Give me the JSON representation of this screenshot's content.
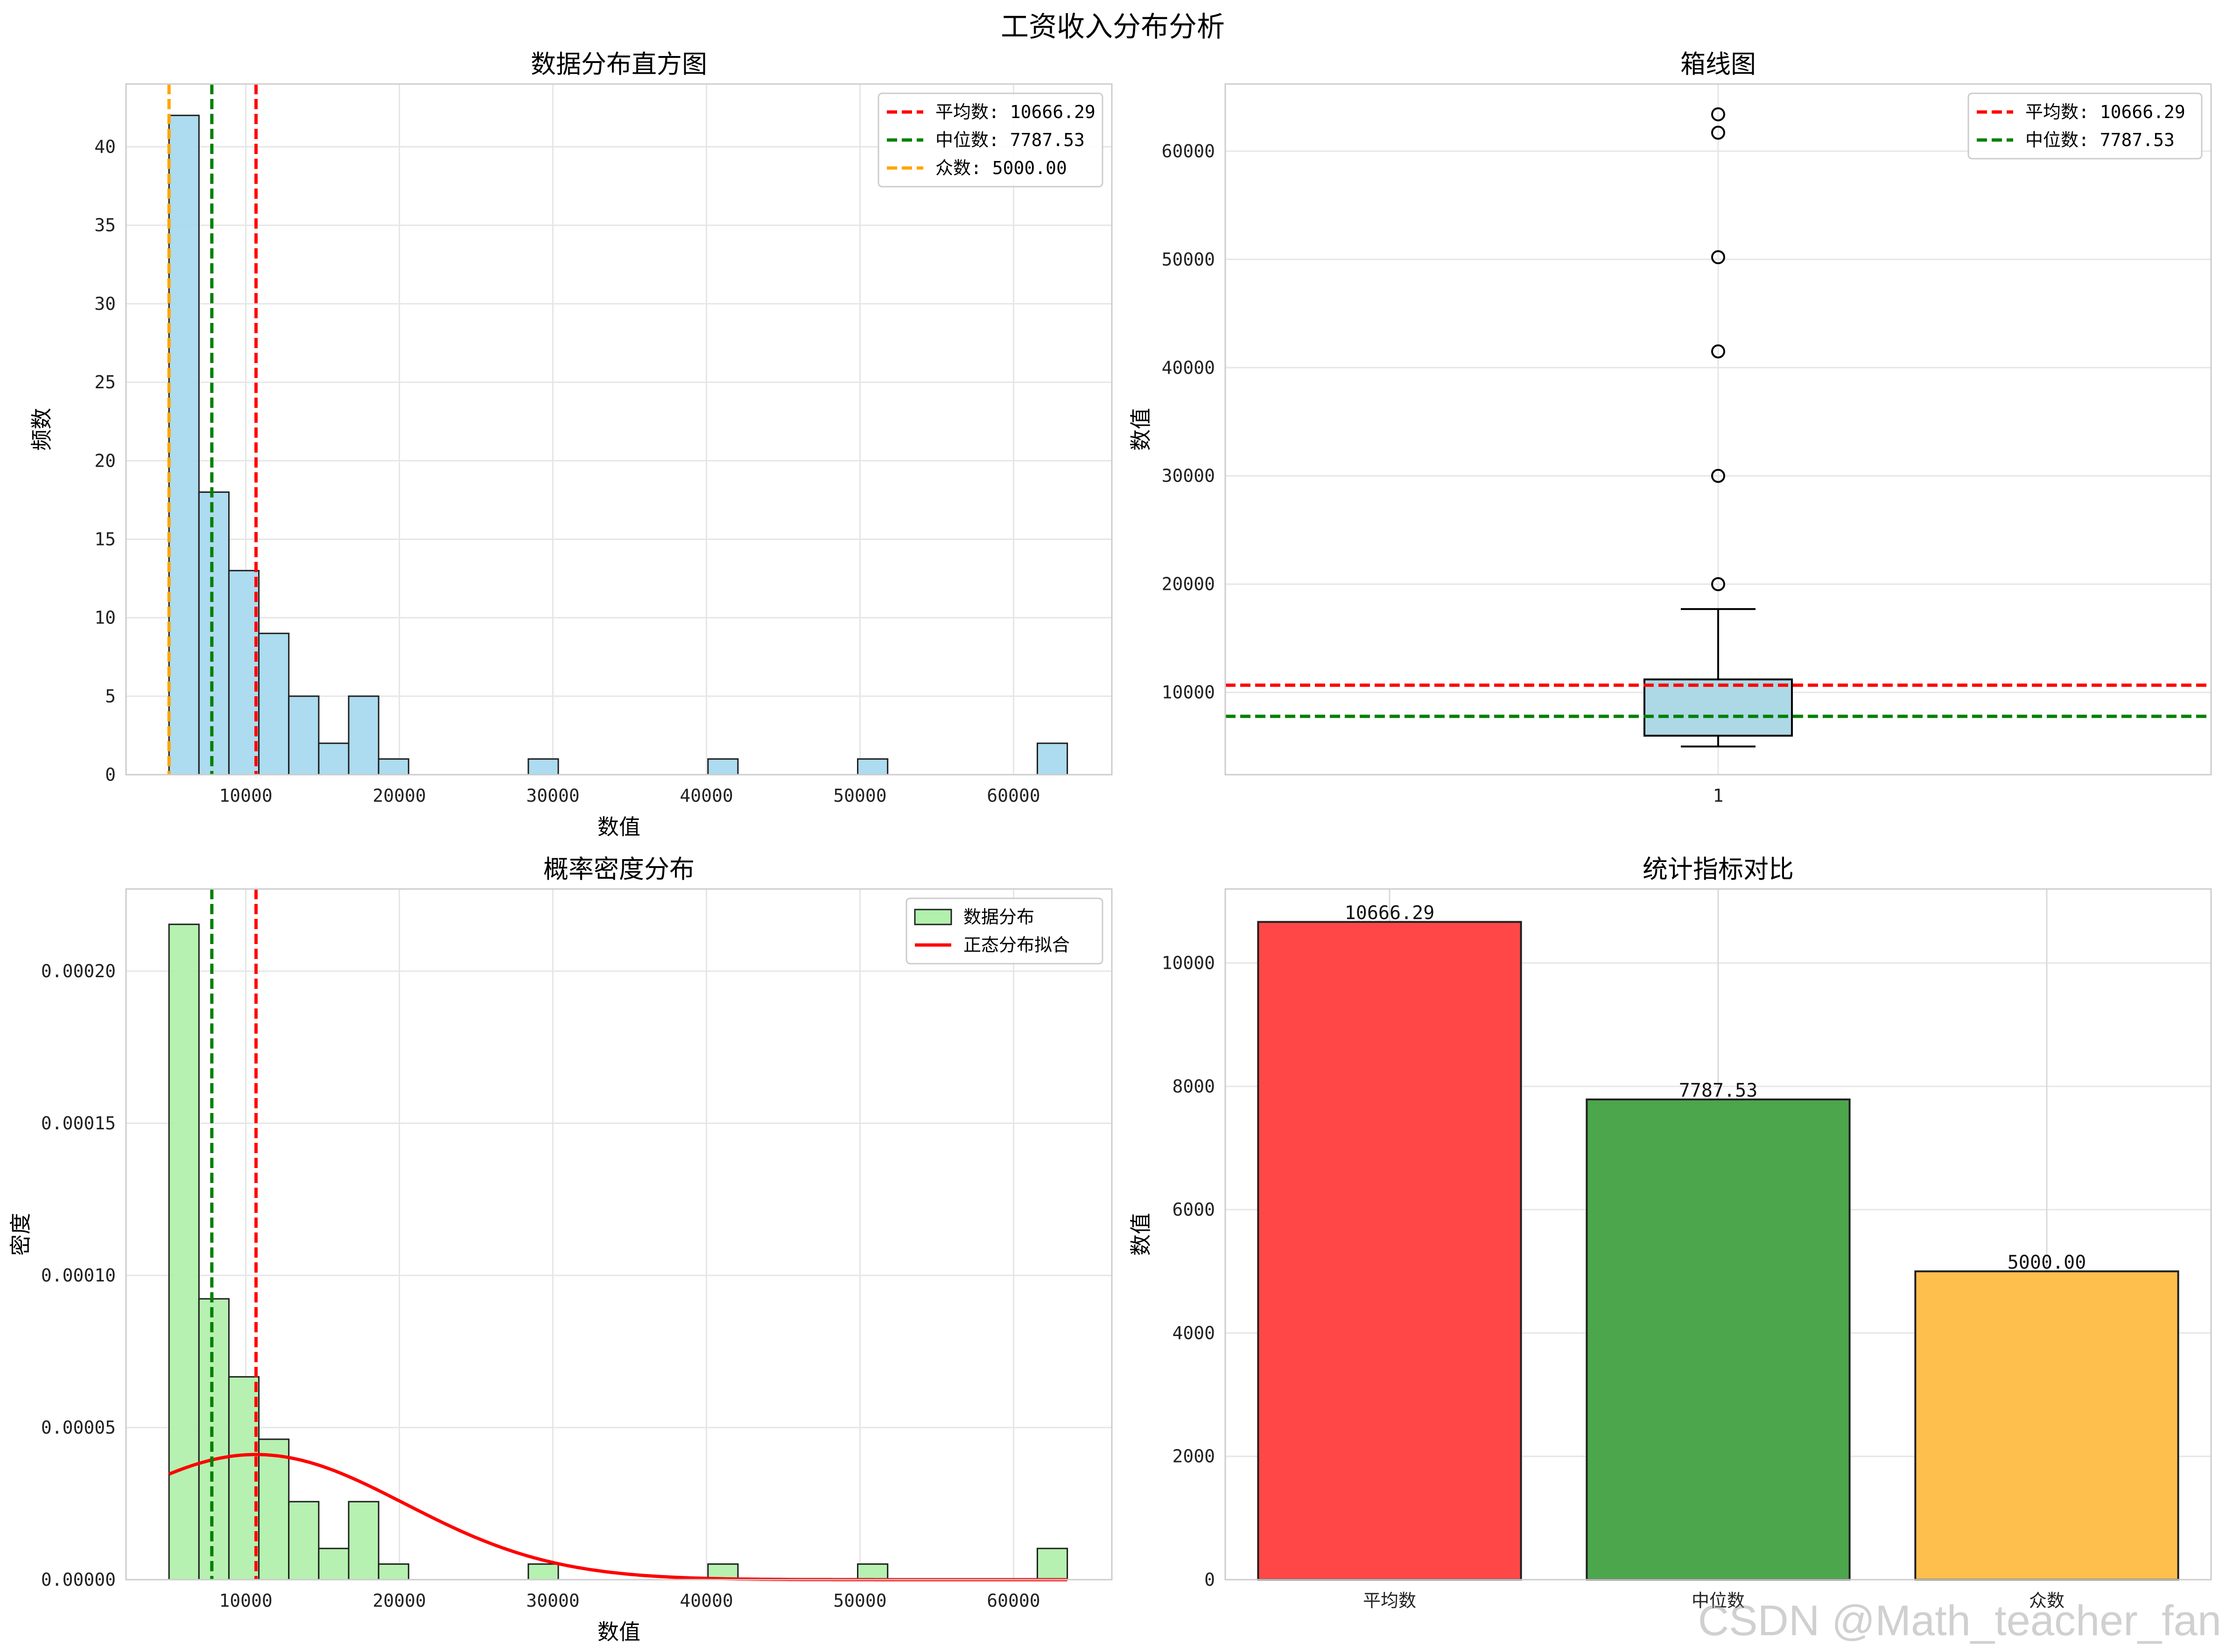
{
  "suptitle": "工资收入分布分析",
  "watermark": "CSDN @Math_teacher_fan",
  "colors": {
    "mean": "#ff0000",
    "median": "#008000",
    "mode": "#ffa500",
    "hist_fill": "#a9d9ee",
    "density_fill": "#b2f0ad",
    "box_fill": "#add8e6",
    "normal_curve": "#ff0000"
  },
  "chart_data": [
    {
      "id": "histogram",
      "type": "bar",
      "title": "数据分布直方图",
      "xlabel": "数值",
      "ylabel": "频数",
      "xlim": [
        2200,
        66400
      ],
      "ylim": [
        0,
        44
      ],
      "xticks": [
        10000,
        20000,
        30000,
        40000,
        50000,
        60000
      ],
      "yticks": [
        0,
        5,
        10,
        15,
        20,
        25,
        30,
        35,
        40
      ],
      "grid": true,
      "bin_edges": [
        5000,
        6950,
        8900,
        10850,
        12800,
        14750,
        16700,
        18650,
        20600,
        22550,
        24500,
        26450,
        28400,
        30350,
        32300,
        34250,
        36200,
        38150,
        40100,
        42050,
        44000,
        45950,
        47900,
        49850,
        51800,
        53750,
        55700,
        57650,
        59600,
        61550,
        63500
      ],
      "counts": [
        42,
        18,
        13,
        9,
        5,
        2,
        5,
        1,
        0,
        0,
        0,
        0,
        1,
        0,
        0,
        0,
        0,
        0,
        1,
        0,
        0,
        0,
        0,
        1,
        0,
        0,
        0,
        0,
        0,
        2
      ],
      "vlines": [
        {
          "name": "平均数: 10666.29",
          "x": 10666.29,
          "color": "mean"
        },
        {
          "name": "中位数: 7787.53",
          "x": 7787.53,
          "color": "median"
        },
        {
          "name": "众数: 5000.00",
          "x": 5000.0,
          "color": "mode"
        }
      ],
      "legend": "top-right"
    },
    {
      "id": "boxplot",
      "type": "box",
      "title": "箱线图",
      "xlabel": "",
      "ylabel": "数值",
      "xticks": [
        "1"
      ],
      "ylim": [
        2400,
        66200
      ],
      "yticks": [
        10000,
        20000,
        30000,
        40000,
        50000,
        60000
      ],
      "grid": true,
      "box": {
        "whisker_low": 5000,
        "q1": 6000,
        "median": 7787.53,
        "q3": 11200,
        "whisker_high": 17700
      },
      "outliers": [
        20000,
        30000,
        41500,
        50200,
        61700,
        63400
      ],
      "hlines": [
        {
          "name": "平均数: 10666.29",
          "y": 10666.29,
          "color": "mean"
        },
        {
          "name": "中位数: 7787.53",
          "y": 7787.53,
          "color": "median"
        }
      ],
      "legend": "top-right"
    },
    {
      "id": "density",
      "type": "bar",
      "title": "概率密度分布",
      "xlabel": "数值",
      "ylabel": "密度",
      "xlim": [
        2200,
        66400
      ],
      "ylim": [
        0,
        0.000227
      ],
      "xticks": [
        10000,
        20000,
        30000,
        40000,
        50000,
        60000
      ],
      "yticks": [
        0,
        5e-05,
        0.0001,
        0.00015,
        0.0002
      ],
      "ytick_labels": [
        "0.00000",
        "0.00005",
        "0.00010",
        "0.00015",
        "0.00020"
      ],
      "grid": true,
      "bin_edges": [
        5000,
        6950,
        8900,
        10850,
        12800,
        14750,
        16700,
        18650,
        20600,
        22550,
        24500,
        26450,
        28400,
        30350,
        32300,
        34250,
        36200,
        38150,
        40100,
        42050,
        44000,
        45950,
        47900,
        49850,
        51800,
        53750,
        55700,
        57650,
        59600,
        61550,
        63500
      ],
      "counts": [
        42,
        18,
        13,
        9,
        5,
        2,
        5,
        1,
        0,
        0,
        0,
        0,
        1,
        0,
        0,
        0,
        0,
        0,
        1,
        0,
        0,
        0,
        0,
        1,
        0,
        0,
        0,
        0,
        0,
        2
      ],
      "normal_fit": {
        "mean": 10666.29,
        "std": 9700
      },
      "vlines": [
        {
          "x": 7787.53,
          "color": "median"
        },
        {
          "x": 10666.29,
          "color": "mean"
        }
      ],
      "series": [
        {
          "name": "数据分布",
          "kind": "bar"
        },
        {
          "name": "正态分布拟合",
          "kind": "line"
        }
      ],
      "legend": "top-right"
    },
    {
      "id": "stats",
      "type": "bar",
      "title": "统计指标对比",
      "xlabel": "",
      "ylabel": "数值",
      "categories": [
        "平均数",
        "中位数",
        "众数"
      ],
      "values": [
        10666.29,
        7787.53,
        5000.0
      ],
      "value_labels": [
        "10666.29",
        "7787.53",
        "5000.00"
      ],
      "bar_colors": [
        "#ff4747",
        "#4ca64c",
        "#ffbf4c"
      ],
      "ylim": [
        0,
        11200
      ],
      "yticks": [
        0,
        2000,
        4000,
        6000,
        8000,
        10000
      ],
      "grid": true
    }
  ]
}
